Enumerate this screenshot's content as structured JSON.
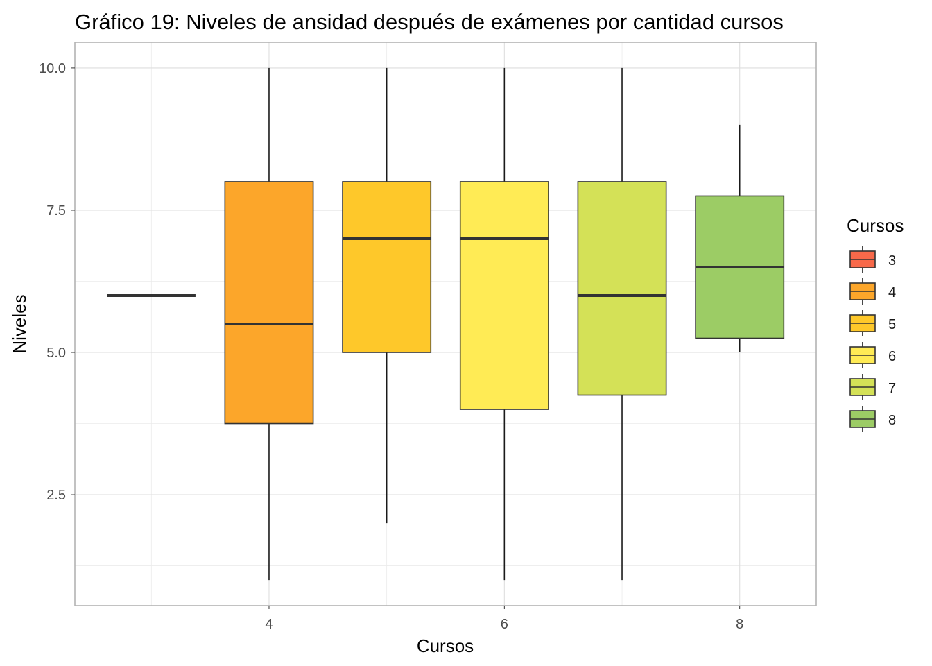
{
  "chart_data": {
    "type": "boxplot",
    "title": "Gráfico 19: Niveles de ansidad después de exámenes por cantidad cursos",
    "xlabel": "Cursos",
    "ylabel": "Niveles",
    "x_ticks": [
      "4",
      "6",
      "8"
    ],
    "y_ticks": [
      "2.5",
      "5.0",
      "7.5",
      "10.0"
    ],
    "xlim": [
      2.35,
      8.65
    ],
    "ylim": [
      0.55,
      10.45
    ],
    "grid": true,
    "legend": {
      "title": "Cursos",
      "position": "right",
      "items": [
        "3",
        "4",
        "5",
        "6",
        "7",
        "8"
      ]
    },
    "boxes": [
      {
        "x": 3,
        "label": "3",
        "min": 6,
        "q1": 6,
        "median": 6,
        "q3": 6,
        "max": 6,
        "color": "#F8694A"
      },
      {
        "x": 4,
        "label": "4",
        "min": 1,
        "q1": 3.75,
        "median": 5.5,
        "q3": 8,
        "max": 10,
        "color": "#FCA62A"
      },
      {
        "x": 5,
        "label": "5",
        "min": 2,
        "q1": 5,
        "median": 7,
        "q3": 8,
        "max": 10,
        "color": "#FEC82A"
      },
      {
        "x": 6,
        "label": "6",
        "min": 1,
        "q1": 4,
        "median": 7,
        "q3": 8,
        "max": 10,
        "color": "#FFEB55"
      },
      {
        "x": 7,
        "label": "7",
        "min": 1,
        "q1": 4.25,
        "median": 6,
        "q3": 8,
        "max": 10,
        "color": "#D4E157"
      },
      {
        "x": 8,
        "label": "8",
        "min": 5,
        "q1": 5.25,
        "median": 6.5,
        "q3": 7.75,
        "max": 9,
        "color": "#9CCC65"
      }
    ]
  }
}
